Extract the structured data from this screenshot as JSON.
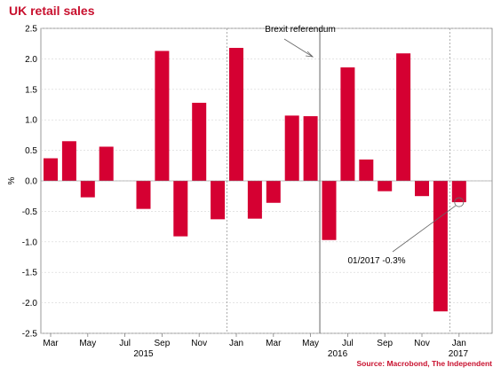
{
  "chart_data": {
    "type": "bar",
    "title": "UK retail sales",
    "ylabel": "%",
    "xlabel": "",
    "ylim": [
      -2.5,
      2.5
    ],
    "yticks": [
      2.5,
      2.0,
      1.5,
      1.0,
      0.5,
      0.0,
      -0.5,
      -1.0,
      -1.5,
      -2.0,
      -2.5
    ],
    "yticks_labels": [
      "2.5",
      "2.0",
      "1.5",
      "1.0",
      "0.5",
      "0.0",
      "-0.5",
      "-1.0",
      "-1.5",
      "-2.0",
      "-2.5"
    ],
    "x_tick_labels": [
      "Mar",
      "May",
      "Jul",
      "Sep",
      "Nov",
      "Jan",
      "Mar",
      "May",
      "Jul",
      "Sep",
      "Nov",
      "Jan"
    ],
    "year_labels": [
      "2015",
      "2016",
      "2017"
    ],
    "categories": [
      "2015-03",
      "2015-04",
      "2015-05",
      "2015-06",
      "2015-07",
      "2015-08",
      "2015-09",
      "2015-10",
      "2015-11",
      "2015-12",
      "2016-01",
      "2016-02",
      "2016-03",
      "2016-04",
      "2016-05",
      "2016-06",
      "2016-07",
      "2016-08",
      "2016-09",
      "2016-10",
      "2016-11",
      "2016-12",
      "2017-01"
    ],
    "values": [
      0.37,
      0.65,
      -0.27,
      0.56,
      null,
      -0.46,
      2.13,
      -0.91,
      1.28,
      -0.63,
      2.18,
      -0.62,
      -0.36,
      1.07,
      1.06,
      -0.97,
      1.86,
      0.35,
      -0.17,
      2.09,
      -0.25,
      -2.14,
      -0.35
    ],
    "annotations": [
      "Brexit referendum",
      "01/2017 -0.3%"
    ],
    "colors": {
      "bar": "#d50032",
      "title": "#c8102e",
      "source": "#c8102e",
      "grid": "#d3d3d3",
      "axis": "#808080"
    }
  },
  "source": "Source: Macrobond, The Independent"
}
